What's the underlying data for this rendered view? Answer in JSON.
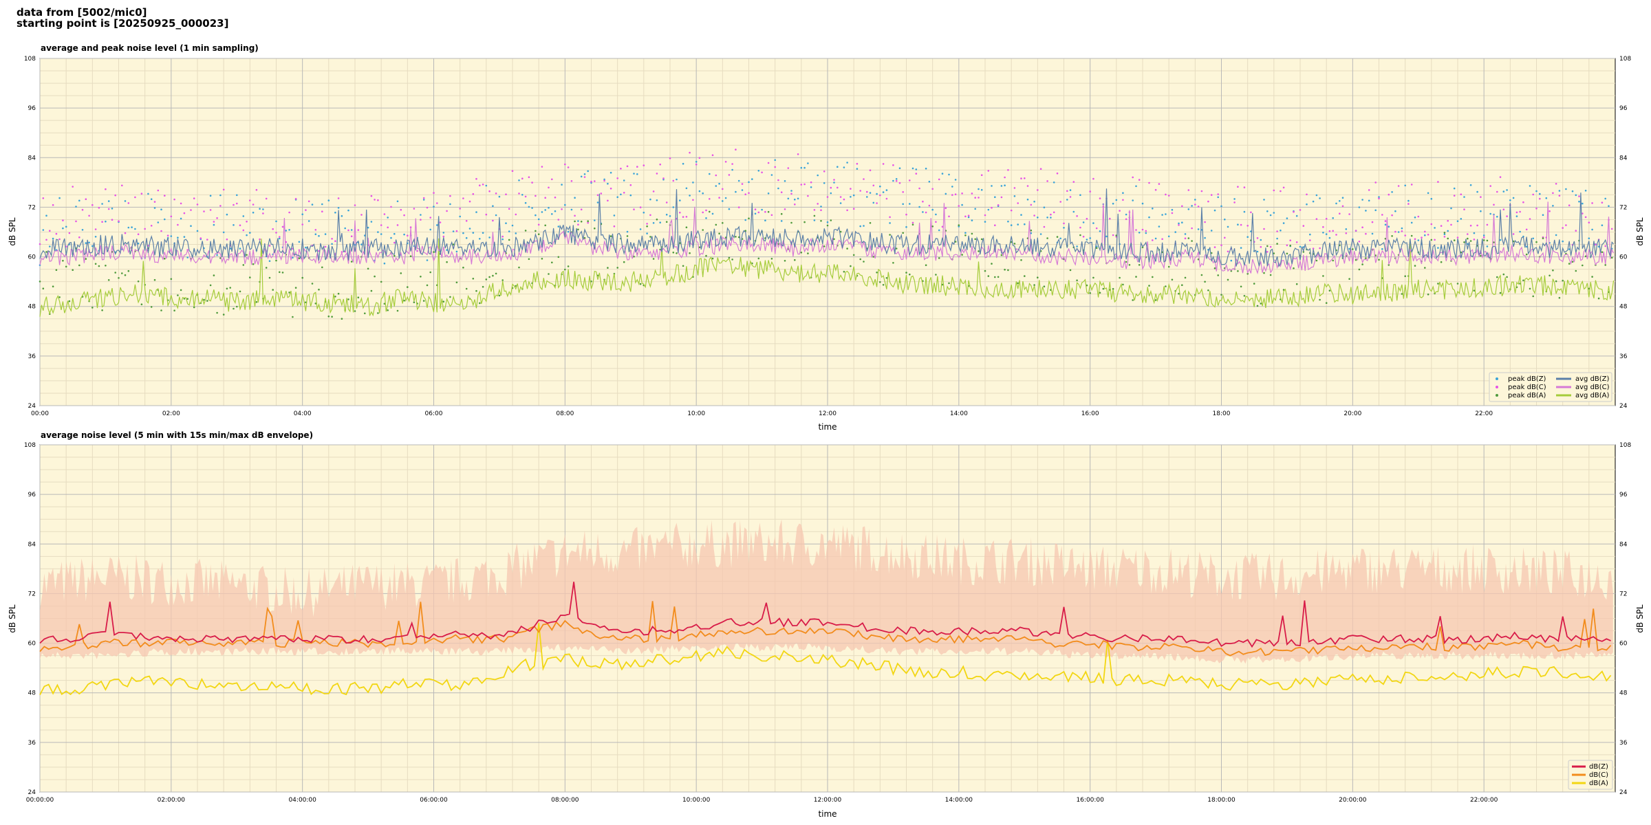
{
  "header": {
    "line1": "data from [5002/mic0]",
    "line2": "starting point is [20250925_000023]"
  },
  "colors": {
    "background": "#fdf6d9",
    "grid_major": "#b8b8b8",
    "grid_minor": "#e6dcc0",
    "peak_z": "#3aa3d8",
    "peak_c": "#e653e6",
    "peak_a": "#4f9a3c",
    "avg_z": "#5a7fa8",
    "avg_c": "#d67ad6",
    "avg_a": "#a5cc3a",
    "env_fill": "#f6c7b0",
    "z5": "#d81b48",
    "c5": "#f28c1c",
    "a5": "#f2d612"
  },
  "chart_data": [
    {
      "type": "line",
      "title": "average and peak noise level (1 min sampling)",
      "xlabel": "time",
      "ylabel": "dB SPL",
      "ylabel_right": "dB SPL",
      "ylim": [
        24,
        108
      ],
      "y_ticks": [
        "24",
        "36",
        "48",
        "60",
        "72",
        "84",
        "96",
        "108"
      ],
      "xlim_minutes": [
        0,
        1440
      ],
      "x_ticks": [
        "00:00",
        "02:00",
        "04:00",
        "06:00",
        "08:00",
        "10:00",
        "12:00",
        "14:00",
        "16:00",
        "18:00",
        "20:00",
        "22:00"
      ],
      "grid": true,
      "legend_position": "bottom-right",
      "legend": [
        "peak dB(Z)",
        "peak dB(C)",
        "peak dB(A)",
        "avg dB(Z)",
        "avg dB(C)",
        "avg dB(A)"
      ],
      "series": [
        {
          "name": "avg dB(Z)",
          "x": [
            0,
            30,
            60,
            90,
            120,
            150,
            180,
            210,
            240,
            270,
            300,
            330,
            360,
            390,
            420,
            450,
            480,
            510,
            540,
            570,
            600,
            630,
            660,
            690,
            720,
            750,
            780,
            810,
            840,
            870,
            900,
            930,
            960,
            990,
            1020,
            1050,
            1080,
            1110,
            1140,
            1170,
            1200,
            1230,
            1260,
            1290,
            1320,
            1350,
            1380,
            1410,
            1439
          ],
          "values": [
            62,
            62,
            63,
            63,
            62,
            62,
            62,
            62,
            62,
            61,
            62,
            62,
            63,
            62,
            62,
            63,
            66,
            64,
            63,
            63,
            64,
            65,
            65,
            64,
            65,
            64,
            63,
            63,
            63,
            63,
            63,
            62,
            62,
            61,
            61,
            62,
            60,
            60,
            60,
            61,
            62,
            62,
            62,
            62,
            62,
            63,
            62,
            62,
            62
          ]
        },
        {
          "name": "avg dB(C)",
          "x": [
            0,
            30,
            60,
            90,
            120,
            150,
            180,
            210,
            240,
            270,
            300,
            330,
            360,
            390,
            420,
            450,
            480,
            510,
            540,
            570,
            600,
            630,
            660,
            690,
            720,
            750,
            780,
            810,
            840,
            870,
            900,
            930,
            960,
            990,
            1020,
            1050,
            1080,
            1110,
            1140,
            1170,
            1200,
            1230,
            1260,
            1290,
            1320,
            1350,
            1380,
            1410,
            1439
          ],
          "values": [
            60,
            60,
            61,
            61,
            60,
            60,
            60,
            60,
            60,
            60,
            60,
            60,
            61,
            60,
            60,
            62,
            65,
            62,
            61,
            61,
            62,
            63,
            63,
            62,
            63,
            62,
            61,
            61,
            61,
            61,
            61,
            60,
            60,
            59,
            59,
            60,
            58,
            58,
            58,
            59,
            60,
            60,
            60,
            60,
            60,
            61,
            60,
            60,
            60
          ]
        },
        {
          "name": "avg dB(A)",
          "x": [
            0,
            30,
            60,
            90,
            120,
            150,
            180,
            210,
            240,
            270,
            300,
            330,
            360,
            390,
            420,
            450,
            480,
            510,
            540,
            570,
            600,
            630,
            660,
            690,
            720,
            750,
            780,
            810,
            840,
            870,
            900,
            930,
            960,
            990,
            1020,
            1050,
            1080,
            1110,
            1140,
            1170,
            1200,
            1230,
            1260,
            1290,
            1320,
            1350,
            1380,
            1410,
            1439
          ],
          "values": [
            48,
            49,
            50,
            51,
            50,
            50,
            49,
            50,
            49,
            49,
            48,
            50,
            49,
            49,
            52,
            54,
            55,
            54,
            54,
            55,
            57,
            58,
            57,
            56,
            56,
            55,
            54,
            53,
            53,
            52,
            52,
            52,
            52,
            51,
            51,
            51,
            50,
            50,
            50,
            51,
            51,
            51,
            52,
            52,
            53,
            53,
            53,
            52,
            52
          ]
        },
        {
          "name": "peak dB(Z)",
          "x": [
            0,
            60,
            120,
            180,
            240,
            300,
            360,
            420,
            480,
            540,
            600,
            660,
            720,
            780,
            840,
            900,
            960,
            1020,
            1080,
            1140,
            1200,
            1260,
            1320,
            1380,
            1439
          ],
          "values": [
            66,
            68,
            67,
            67,
            66,
            66,
            67,
            70,
            74,
            72,
            76,
            76,
            76,
            74,
            73,
            72,
            70,
            69,
            67,
            67,
            69,
            70,
            70,
            69,
            68
          ]
        },
        {
          "name": "peak dB(C)",
          "x": [
            0,
            60,
            120,
            180,
            240,
            300,
            360,
            420,
            480,
            540,
            600,
            660,
            720,
            780,
            840,
            900,
            960,
            1020,
            1080,
            1140,
            1200,
            1260,
            1320,
            1380,
            1439
          ],
          "values": [
            68,
            70,
            69,
            69,
            68,
            68,
            69,
            72,
            76,
            74,
            78,
            78,
            78,
            76,
            75,
            74,
            72,
            71,
            69,
            69,
            71,
            72,
            72,
            71,
            70
          ]
        },
        {
          "name": "peak dB(A)",
          "x": [
            0,
            60,
            120,
            180,
            240,
            300,
            360,
            420,
            480,
            540,
            600,
            660,
            720,
            780,
            840,
            900,
            960,
            1020,
            1080,
            1140,
            1200,
            1260,
            1320,
            1380,
            1439
          ],
          "values": [
            54,
            55,
            54,
            54,
            53,
            53,
            54,
            58,
            61,
            60,
            63,
            63,
            62,
            61,
            60,
            59,
            58,
            57,
            56,
            56,
            57,
            58,
            58,
            57,
            57
          ]
        }
      ]
    },
    {
      "type": "line",
      "title": "average noise level (5 min with 15s min/max dB envelope)",
      "xlabel": "time",
      "ylabel": "dB SPL",
      "ylabel_right": "dB SPL",
      "ylim": [
        24,
        108
      ],
      "y_ticks": [
        "24",
        "36",
        "48",
        "60",
        "72",
        "84",
        "96",
        "108"
      ],
      "xlim_minutes": [
        0,
        1440
      ],
      "x_ticks": [
        "00:00:00",
        "02:00:00",
        "04:00:00",
        "06:00:00",
        "08:00:00",
        "10:00:00",
        "12:00:00",
        "14:00:00",
        "16:00:00",
        "18:00:00",
        "20:00:00",
        "22:00:00"
      ],
      "grid": true,
      "legend_position": "bottom-right",
      "legend": [
        "dB(Z)",
        "dB(C)",
        "dB(A)"
      ],
      "series": [
        {
          "name": "dB(Z)",
          "x": [
            0,
            30,
            60,
            90,
            120,
            150,
            180,
            210,
            240,
            270,
            300,
            330,
            360,
            390,
            420,
            450,
            480,
            510,
            540,
            570,
            600,
            630,
            660,
            690,
            720,
            750,
            780,
            810,
            840,
            870,
            900,
            930,
            960,
            990,
            1020,
            1050,
            1080,
            1110,
            1140,
            1170,
            1200,
            1230,
            1260,
            1290,
            1320,
            1350,
            1380,
            1410,
            1439
          ],
          "values": [
            61,
            61,
            62,
            62,
            61,
            61,
            61,
            61,
            61,
            61,
            61,
            61,
            62,
            62,
            62,
            64,
            67,
            64,
            63,
            63,
            64,
            65,
            65,
            65,
            65,
            64,
            63,
            63,
            63,
            63,
            63,
            62,
            62,
            61,
            61,
            61,
            60,
            60,
            60,
            60,
            61,
            61,
            61,
            61,
            61,
            62,
            61,
            61,
            61
          ]
        },
        {
          "name": "dB(C)",
          "x": [
            0,
            30,
            60,
            90,
            120,
            150,
            180,
            210,
            240,
            270,
            300,
            330,
            360,
            390,
            420,
            450,
            480,
            510,
            540,
            570,
            600,
            630,
            660,
            690,
            720,
            750,
            780,
            810,
            840,
            870,
            900,
            930,
            960,
            990,
            1020,
            1050,
            1080,
            1110,
            1140,
            1170,
            1200,
            1230,
            1260,
            1290,
            1320,
            1350,
            1380,
            1410,
            1439
          ],
          "values": [
            59,
            59,
            60,
            60,
            60,
            60,
            60,
            60,
            60,
            60,
            60,
            60,
            61,
            61,
            61,
            63,
            65,
            62,
            61,
            61,
            62,
            63,
            63,
            63,
            63,
            62,
            61,
            61,
            61,
            61,
            61,
            60,
            60,
            59,
            59,
            59,
            58,
            58,
            58,
            58,
            59,
            59,
            59,
            59,
            59,
            60,
            59,
            59,
            59
          ]
        },
        {
          "name": "dB(A)",
          "x": [
            0,
            30,
            60,
            90,
            120,
            150,
            180,
            210,
            240,
            270,
            300,
            330,
            360,
            390,
            420,
            450,
            480,
            510,
            540,
            570,
            600,
            630,
            660,
            690,
            720,
            750,
            780,
            810,
            840,
            870,
            900,
            930,
            960,
            990,
            1020,
            1050,
            1080,
            1110,
            1140,
            1170,
            1200,
            1230,
            1260,
            1290,
            1320,
            1350,
            1380,
            1410,
            1439
          ],
          "values": [
            49,
            49,
            50,
            51,
            50,
            50,
            49,
            50,
            49,
            49,
            49,
            50,
            50,
            50,
            53,
            55,
            56,
            55,
            55,
            56,
            57,
            58,
            57,
            57,
            56,
            55,
            54,
            53,
            53,
            52,
            52,
            52,
            52,
            51,
            51,
            51,
            50,
            50,
            50,
            51,
            51,
            51,
            52,
            52,
            53,
            53,
            53,
            52,
            52
          ]
        },
        {
          "name": "envelope max",
          "x": [
            0,
            60,
            120,
            180,
            240,
            300,
            360,
            420,
            480,
            540,
            600,
            660,
            720,
            780,
            840,
            900,
            960,
            1020,
            1080,
            1140,
            1200,
            1260,
            1320,
            1380,
            1439
          ],
          "values": [
            72,
            74,
            73,
            72,
            70,
            72,
            72,
            75,
            80,
            80,
            82,
            82,
            82,
            80,
            78,
            78,
            76,
            76,
            74,
            74,
            76,
            76,
            76,
            75,
            74
          ]
        },
        {
          "name": "envelope min",
          "x": [
            0,
            60,
            120,
            180,
            240,
            300,
            360,
            420,
            480,
            540,
            600,
            660,
            720,
            780,
            840,
            900,
            960,
            1020,
            1080,
            1140,
            1200,
            1260,
            1320,
            1380,
            1439
          ],
          "values": [
            58,
            58,
            59,
            59,
            59,
            59,
            59,
            59,
            60,
            59,
            60,
            60,
            60,
            59,
            59,
            59,
            58,
            58,
            57,
            57,
            58,
            58,
            58,
            58,
            58
          ]
        }
      ]
    }
  ]
}
